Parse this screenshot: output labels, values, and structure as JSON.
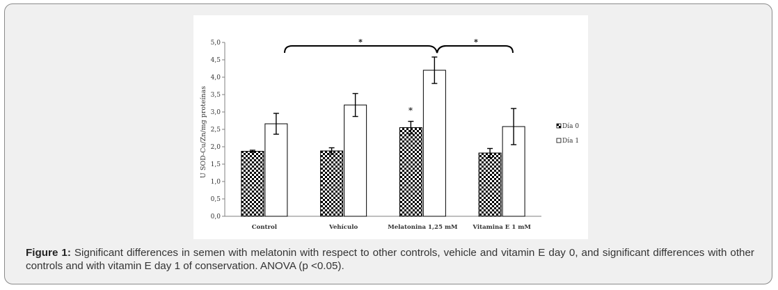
{
  "caption": {
    "label": "Figure 1:",
    "text": "Significant differences in semen with melatonin with respect to other controls, vehicle and vitamin E day 0, and significant differences with other controls and with vitamin E day 1 of conservation. ANOVA (p <0.05)."
  },
  "chart_data": {
    "type": "bar",
    "title": "",
    "xlabel": "",
    "ylabel": "U SOD-Cu/Zn/mg proteínas",
    "ylim": [
      0,
      5
    ],
    "yticks": [
      "0,0",
      "0,5",
      "1,0",
      "1,5",
      "2,0",
      "2,5",
      "3,0",
      "3,5",
      "4,0",
      "4,5",
      "5,0"
    ],
    "categories": [
      "Control",
      "Vehículo",
      "Melatonina 1,25 mM",
      "Vitamina E 1 mM"
    ],
    "series": [
      {
        "name": "Día 0",
        "values": [
          1.87,
          1.88,
          2.55,
          1.82
        ],
        "errors": [
          0.03,
          0.09,
          0.18,
          0.13
        ],
        "pattern": "checker"
      },
      {
        "name": "Día 1",
        "values": [
          2.66,
          3.2,
          4.2,
          2.58
        ],
        "errors": [
          0.3,
          0.33,
          0.38,
          0.52
        ],
        "pattern": "white"
      }
    ],
    "legend": "right",
    "annotations": {
      "bar_star": "*",
      "bracket_left_star": "*",
      "bracket_right_star": "*"
    }
  },
  "colors": {
    "frame_bg": "#f0f0f0",
    "frame_border": "#8a8a8a",
    "axis": "#7f7f7f",
    "bar_edge": "#000000",
    "text": "#333333"
  }
}
